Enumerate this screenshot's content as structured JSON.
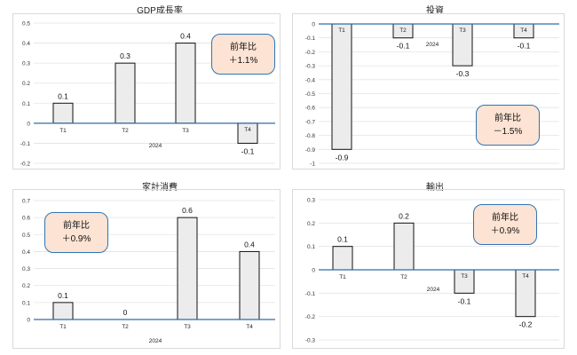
{
  "notes_label": "前年比",
  "chart_data": [
    {
      "type": "bar",
      "title": "GDP成長率",
      "categories": [
        "T1",
        "T2",
        "T3",
        "T4"
      ],
      "values": [
        0.1,
        0.3,
        0.4,
        -0.1
      ],
      "value_labels": [
        "0.1",
        "0.3",
        "0.4",
        "-0.1"
      ],
      "x_group_label": "2024",
      "yticks": [
        "0.5",
        "0.4",
        "0.3",
        "0.2",
        "0.1",
        "0",
        "-0.1",
        "-0.2"
      ],
      "ylim": [
        -0.2,
        0.5
      ],
      "grid": true,
      "yoy": "＋1.1%"
    },
    {
      "type": "bar",
      "title": "投資",
      "categories": [
        "T1",
        "T2",
        "T3",
        "T4"
      ],
      "values": [
        -0.9,
        -0.1,
        -0.3,
        -0.1
      ],
      "value_labels": [
        "-0.9",
        "-0.1",
        "-0.3",
        "-0.1"
      ],
      "x_group_label": "2024",
      "yticks": [
        "0",
        "-0.1",
        "-0.2",
        "-0.3",
        "-0.4",
        "-0.5",
        "-0.6",
        "-0.7",
        "-0.8",
        "-0.9",
        "-1"
      ],
      "ylim": [
        -1,
        0
      ],
      "grid": true,
      "yoy": "－1.5%"
    },
    {
      "type": "bar",
      "title": "家計消費",
      "categories": [
        "T1",
        "T2",
        "T3",
        "T4"
      ],
      "values": [
        0.1,
        0,
        0.6,
        0.4
      ],
      "value_labels": [
        "0.1",
        "0",
        "0.6",
        "0.4"
      ],
      "x_group_label": "2024",
      "yticks": [
        "0.7",
        "0.6",
        "0.5",
        "0.4",
        "0.3",
        "0.2",
        "0.1",
        "0"
      ],
      "ylim": [
        0,
        0.7
      ],
      "grid": true,
      "yoy": "＋0.9%"
    },
    {
      "type": "bar",
      "title": "輸出",
      "categories": [
        "T1",
        "T2",
        "T3",
        "T4"
      ],
      "values": [
        0.1,
        0.2,
        -0.1,
        -0.2
      ],
      "value_labels": [
        "0.1",
        "0.2",
        "-0.1",
        "-0.2"
      ],
      "x_group_label": "2024",
      "yticks": [
        "0.3",
        "0.2",
        "0.1",
        "0",
        "-0.1",
        "-0.2",
        "-0.3"
      ],
      "ylim": [
        -0.3,
        0.3
      ],
      "grid": true,
      "yoy": "＋0.9%"
    }
  ]
}
